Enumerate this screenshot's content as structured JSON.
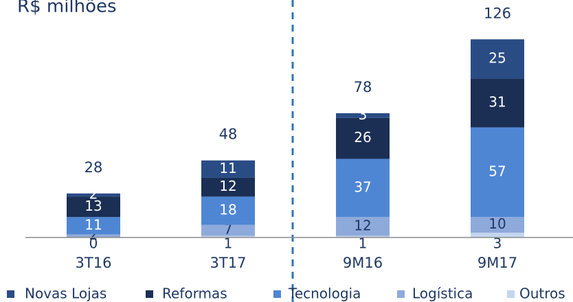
{
  "chart_data": {
    "type": "stacked_bar",
    "title": "R$ milhões",
    "categories": [
      "3T16",
      "3T17",
      "9M16",
      "9M17"
    ],
    "series": [
      {
        "name": "Outros",
        "color": "#c5d5ee",
        "values": [
          0,
          1,
          1,
          3
        ]
      },
      {
        "name": "Logística",
        "color": "#8eaadb",
        "values": [
          2,
          7,
          12,
          10
        ]
      },
      {
        "name": "Tecnologia",
        "color": "#4f86d4",
        "values": [
          11,
          18,
          37,
          57
        ]
      },
      {
        "name": "Reformas",
        "color": "#1b2f55",
        "values": [
          13,
          12,
          26,
          31
        ]
      },
      {
        "name": "Novas Lojas",
        "color": "#2a4c85",
        "values": [
          2,
          11,
          3,
          25
        ]
      }
    ],
    "totals": [
      28,
      48,
      78,
      126
    ],
    "ylim": [
      0,
      151
    ]
  }
}
